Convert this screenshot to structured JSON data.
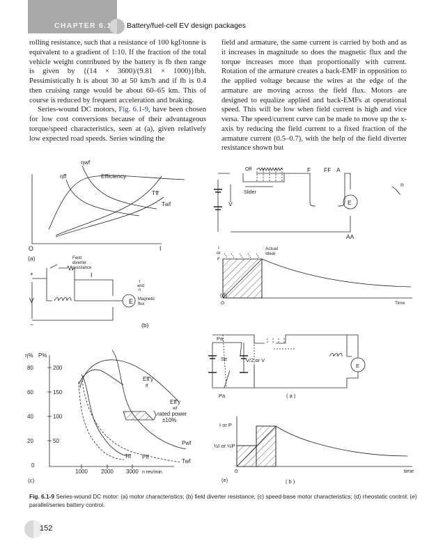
{
  "header": {
    "chapter": "CHAPTER 6.1",
    "title": "Battery/fuel-cell EV design packages"
  },
  "left_column": {
    "p1": "rolling resistance, such that a resistance of 100 kgf/tonne is equivalent to a gradient of 1:10. If the fraction of the total vehicle weight contributed by the battery is fb then range is given by {(14 × 3600)/(9.81 × 1000)}fbh. Pessimistically h is about 30 at 50 km/h and if fb is 0.4 then cruising range would be about 60–65 km. This of course is reduced by frequent acceleration and braking.",
    "p2_start": "Series-wound DC motors, ",
    "p2_link": "Fig. 6.1-9",
    "p2_end": ", have been chosen for low cost conversions because of their advantageous torque/speed characteristics, seen at (a), given relatively low expected road speeds. Series winding the"
  },
  "right_column": {
    "p1": "field and armature, the same current is carried by both and as it increases in magnitude so does the magnetic flux and the torque increases more than proportionally with current. Rotation of the armature creates a back-EMF in opposition to the applied voltage because the wires at the edge of the armature are moving across the field flux. Motors are designed to equalize applied and back-EMFs at operational speed. This will be low when field current is high and vice versa. The speed/current curve can be made to move up the x-axis by reducing the field current to a fixed fraction of the armature current (0.5–0.7), with the help of the field diverter resistance shown but"
  },
  "figure": {
    "a": {
      "eta_wf": "ηwf",
      "eta_ff": "ηff",
      "efficiency": "Efficiency",
      "t_ff": "Tff",
      "t_wf": "Twf",
      "origin": "O",
      "x_axis": "I",
      "panel": "(a)"
    },
    "b": {
      "field_1": "Field",
      "field_2": "diverter",
      "field_3": "resistance",
      "current": "I",
      "plus": "+",
      "minus": "−",
      "voltage": "V",
      "tau_1": "τ",
      "tau_2": "and",
      "tau_3": "n",
      "emf": "E",
      "flux_1": "Magnetic",
      "flux_2": "flux",
      "panel": "(b)"
    },
    "d": {
      "off": "Off",
      "slider": "Slider",
      "voltage": "V",
      "f": "F",
      "ff": "FF",
      "a": "A",
      "aa": "AA",
      "n": "n",
      "emf": "E",
      "y_1": "I",
      "y_2": "or",
      "y_3": "F",
      "actual": "Actual",
      "ideal": "Ideal",
      "origin": "O",
      "x_axis": "Time",
      "panel": "(d)"
    },
    "c": {
      "y_label_eta": "η%",
      "y_label_p": "P%",
      "y_ticks_eta": [
        "80",
        "60",
        "40",
        "20",
        "0"
      ],
      "y_ticks_p": [
        "200",
        "150",
        "100",
        "50"
      ],
      "x_ticks": [
        "1000",
        "2000",
        "3000"
      ],
      "x_label": "n rev/min",
      "effy_ff_1": "Eff'y",
      "effy_ff_2": "ff",
      "effy_wf_1": "Eff'y",
      "effy_wf_2": "wf",
      "rated_1": "rated power",
      "rated_2": "±10%",
      "p_wf": "Pwf",
      "p_ff": "Pff",
      "t_ff": "Tff",
      "t_wf": "Twf",
      "panel": "(c)"
    },
    "e": {
      "pa_top": "Pa",
      "se": "Se",
      "pa_bottom": "Pa",
      "v_label": "V/2 or V",
      "emf": "E",
      "sub_a": "( a )",
      "y_full": "I or P",
      "y_half": "½I or ½P",
      "origin": "0",
      "x_axis": "time",
      "sub_b": "( b )",
      "panel": "(e)"
    }
  },
  "caption": {
    "label": "Fig. 6.1-9",
    "text": " Series-wound DC motor: (a) motor characteristics; (b) field diverter resistance; (c) speed-base motor characteristics; (d) rheostatic control; (e) parallel/series battery control."
  },
  "page_number": "152",
  "colors": {
    "header_block": "#a9a9a9",
    "link": "#1f3f9a"
  }
}
